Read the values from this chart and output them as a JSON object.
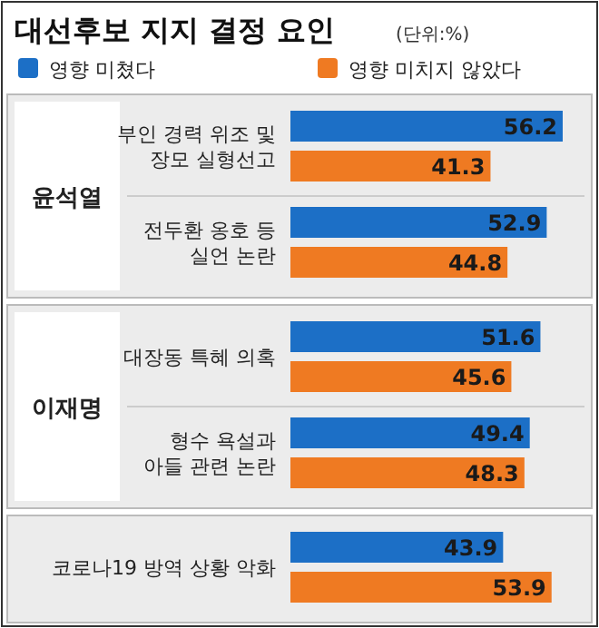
{
  "chart_data": {
    "type": "bar",
    "orientation": "horizontal",
    "title": "대선후보 지지 결정 요인",
    "subtitle": "(단위:%)",
    "categories": [
      "부인 경력 위조 및\n장모 실형선고",
      "전두환 옹호 등\n실언 논란",
      "대장동 특혜 의혹",
      "형수 욕설과\n아들 관련 논란",
      "코로나19 방역 상황 악화"
    ],
    "series": [
      {
        "name": "영향 미쳤다",
        "color": "#1c6fc6",
        "values": [
          56.2,
          52.9,
          51.6,
          49.4,
          43.9
        ]
      },
      {
        "name": "영향 미치지 않았다",
        "color": "#ef7a22",
        "values": [
          41.3,
          44.8,
          45.6,
          48.3,
          53.9
        ]
      }
    ],
    "annotations": [
      "윤석열",
      "이재명"
    ],
    "data_labels": true,
    "legend": "top"
  }
}
